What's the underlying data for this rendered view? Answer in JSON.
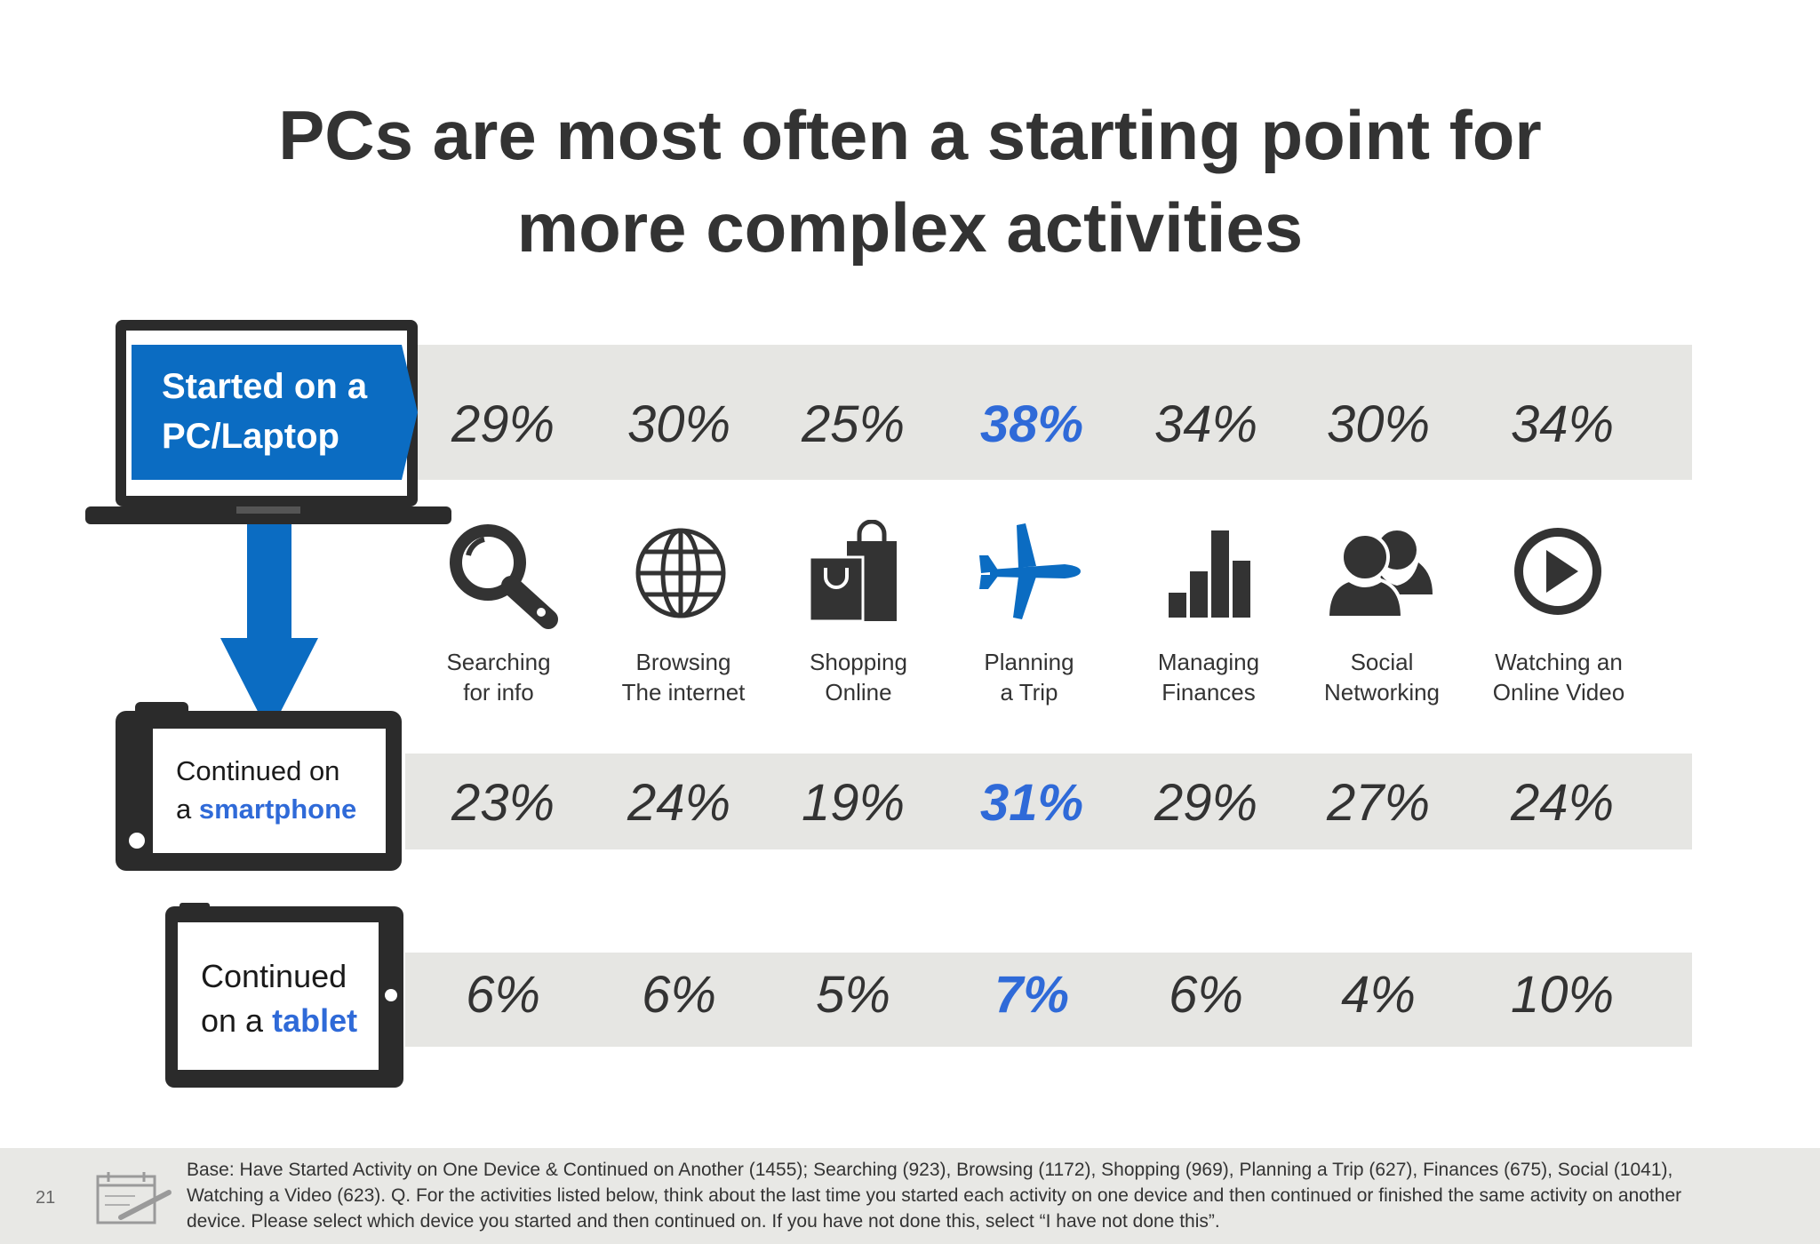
{
  "title": {
    "line1": "PCs are most often a starting point for",
    "line2": "more complex activities"
  },
  "devices": {
    "pc": {
      "line1": "Started on a",
      "line2": "PC/Laptop"
    },
    "smartphone": {
      "prefix": "Continued on",
      "mid": "a ",
      "device": "smartphone"
    },
    "tablet": {
      "prefix": "Continued",
      "mid": "on a ",
      "device": "tablet"
    }
  },
  "icons": [
    "search-icon",
    "globe-icon",
    "shopping-bag-icon",
    "airplane-icon",
    "bar-chart-icon",
    "people-icon",
    "play-icon"
  ],
  "colors": {
    "accent": "#2f6ad8",
    "brand_blue": "#0b6cc2",
    "band": "#e6e6e3",
    "text": "#333333"
  },
  "chart_data": {
    "type": "table",
    "categories": [
      [
        "Searching",
        "for info"
      ],
      [
        "Browsing",
        "The internet"
      ],
      [
        "Shopping",
        "Online"
      ],
      [
        "Planning",
        "a Trip"
      ],
      [
        "Managing",
        "Finances"
      ],
      [
        "Social",
        "Networking"
      ],
      [
        "Watching an",
        "Online Video"
      ]
    ],
    "highlight_index": 3,
    "rows": {
      "pc": [
        "29%",
        "30%",
        "25%",
        "38%",
        "34%",
        "30%",
        "34%"
      ],
      "smartphone": [
        "23%",
        "24%",
        "19%",
        "31%",
        "29%",
        "27%",
        "24%"
      ],
      "tablet": [
        "6%",
        "6%",
        "5%",
        "7%",
        "6%",
        "4%",
        "10%"
      ]
    }
  },
  "footer": {
    "page_number": "21",
    "note": "Base: Have Started Activity on One Device & Continued on Another (1455); Searching (923), Browsing (1172), Shopping (969), Planning a Trip (627), Finances (675), Social (1041), Watching a Video (623). Q. For the activities listed below, think about the last time you started each activity on one device and then continued or finished the same activity on another device.  Please select which device you started and then continued on.  If you have not done this, select “I have not done this”."
  }
}
